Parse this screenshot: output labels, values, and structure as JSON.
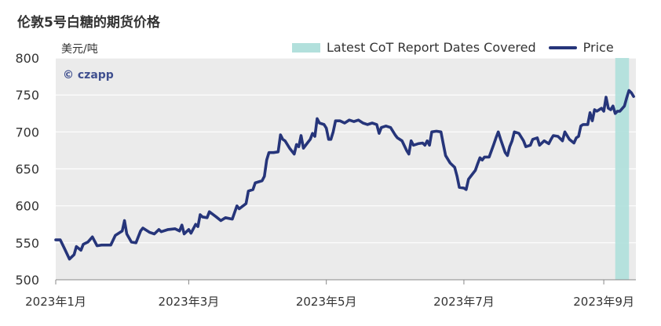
{
  "chart_data": {
    "type": "line",
    "title": "伦敦5号白糖的期货价格",
    "ylabel": "美元/吨",
    "ylim": [
      500,
      800
    ],
    "yticks": [
      500,
      550,
      600,
      650,
      700,
      750,
      800
    ],
    "xlim": [
      0,
      253
    ],
    "x_ticks": [
      {
        "x": 0,
        "label": "2023年1月"
      },
      {
        "x": 58,
        "label": "2023年3月"
      },
      {
        "x": 118,
        "label": "2023年5月"
      },
      {
        "x": 178,
        "label": "2023年7月"
      },
      {
        "x": 239,
        "label": "2023年9月"
      }
    ],
    "grid": "horizontal",
    "watermark": "© czapp",
    "legend": {
      "position": "top-right",
      "entries": [
        {
          "name": "Latest CoT Report Dates Covered",
          "type": "band",
          "color": "#b2e0dc"
        },
        {
          "name": "Price",
          "type": "line",
          "color": "#26357a"
        }
      ]
    },
    "highlight_band": {
      "x_start": 244,
      "x_end": 250,
      "label": "Latest CoT Report Dates Covered"
    },
    "series": [
      {
        "name": "Price",
        "color": "#26357a",
        "points": [
          [
            0,
            554
          ],
          [
            2,
            554
          ],
          [
            4,
            541
          ],
          [
            6,
            528
          ],
          [
            8,
            534
          ],
          [
            9,
            545
          ],
          [
            11,
            540
          ],
          [
            12,
            548
          ],
          [
            14,
            551
          ],
          [
            16,
            558
          ],
          [
            18,
            546
          ],
          [
            20,
            547
          ],
          [
            24,
            547
          ],
          [
            26,
            560
          ],
          [
            29,
            566
          ],
          [
            30,
            580
          ],
          [
            31,
            562
          ],
          [
            33,
            551
          ],
          [
            35,
            550
          ],
          [
            37,
            566
          ],
          [
            38,
            570
          ],
          [
            41,
            564
          ],
          [
            43,
            562
          ],
          [
            45,
            568
          ],
          [
            46,
            565
          ],
          [
            49,
            568
          ],
          [
            52,
            569
          ],
          [
            54,
            566
          ],
          [
            55,
            574
          ],
          [
            56,
            562
          ],
          [
            58,
            568
          ],
          [
            59,
            563
          ],
          [
            61,
            575
          ],
          [
            62,
            572
          ],
          [
            63,
            588
          ],
          [
            64,
            585
          ],
          [
            66,
            584
          ],
          [
            67,
            592
          ],
          [
            70,
            585
          ],
          [
            72,
            580
          ],
          [
            74,
            584
          ],
          [
            77,
            582
          ],
          [
            79,
            600
          ],
          [
            80,
            596
          ],
          [
            83,
            603
          ],
          [
            84,
            620
          ],
          [
            86,
            622
          ],
          [
            87,
            631
          ],
          [
            90,
            634
          ],
          [
            91,
            640
          ],
          [
            92,
            662
          ],
          [
            93,
            672
          ],
          [
            95,
            672
          ],
          [
            97,
            673
          ],
          [
            98,
            696
          ],
          [
            99,
            690
          ],
          [
            100,
            688
          ],
          [
            102,
            678
          ],
          [
            104,
            670
          ],
          [
            105,
            683
          ],
          [
            106,
            680
          ],
          [
            107,
            695
          ],
          [
            108,
            678
          ],
          [
            110,
            686
          ],
          [
            111,
            690
          ],
          [
            112,
            698
          ],
          [
            113,
            694
          ],
          [
            114,
            718
          ],
          [
            115,
            712
          ],
          [
            117,
            710
          ],
          [
            118,
            705
          ],
          [
            119,
            690
          ],
          [
            120,
            690
          ],
          [
            121,
            700
          ],
          [
            122,
            715
          ],
          [
            124,
            715
          ],
          [
            126,
            712
          ],
          [
            128,
            716
          ],
          [
            130,
            714
          ],
          [
            132,
            716
          ],
          [
            134,
            712
          ],
          [
            136,
            710
          ],
          [
            138,
            712
          ],
          [
            140,
            710
          ],
          [
            141,
            698
          ],
          [
            142,
            706
          ],
          [
            144,
            708
          ],
          [
            146,
            706
          ],
          [
            148,
            696
          ],
          [
            149,
            692
          ],
          [
            151,
            688
          ],
          [
            153,
            675
          ],
          [
            154,
            670
          ],
          [
            155,
            688
          ],
          [
            156,
            682
          ],
          [
            158,
            684
          ],
          [
            160,
            685
          ],
          [
            161,
            682
          ],
          [
            162,
            688
          ],
          [
            163,
            682
          ],
          [
            164,
            700
          ],
          [
            166,
            701
          ],
          [
            168,
            700
          ],
          [
            169,
            684
          ],
          [
            170,
            668
          ],
          [
            172,
            658
          ],
          [
            174,
            652
          ],
          [
            175,
            640
          ],
          [
            176,
            625
          ],
          [
            178,
            624
          ],
          [
            179,
            622
          ],
          [
            180,
            636
          ],
          [
            181,
            640
          ],
          [
            183,
            648
          ],
          [
            184,
            657
          ],
          [
            185,
            665
          ],
          [
            186,
            662
          ],
          [
            187,
            666
          ],
          [
            189,
            666
          ],
          [
            191,
            683
          ],
          [
            192,
            692
          ],
          [
            193,
            700
          ],
          [
            194,
            690
          ],
          [
            196,
            672
          ],
          [
            197,
            668
          ],
          [
            198,
            680
          ],
          [
            199,
            688
          ],
          [
            200,
            700
          ],
          [
            202,
            698
          ],
          [
            204,
            688
          ],
          [
            205,
            680
          ],
          [
            207,
            682
          ],
          [
            208,
            690
          ],
          [
            210,
            692
          ],
          [
            211,
            682
          ],
          [
            213,
            688
          ],
          [
            215,
            684
          ],
          [
            216,
            690
          ],
          [
            217,
            695
          ],
          [
            219,
            694
          ],
          [
            221,
            688
          ],
          [
            222,
            700
          ],
          [
            224,
            690
          ],
          [
            226,
            685
          ],
          [
            227,
            692
          ],
          [
            228,
            694
          ],
          [
            229,
            708
          ],
          [
            230,
            710
          ],
          [
            232,
            710
          ],
          [
            233,
            726
          ],
          [
            234,
            715
          ],
          [
            235,
            730
          ],
          [
            236,
            728
          ],
          [
            238,
            732
          ],
          [
            239,
            728
          ],
          [
            240,
            747
          ],
          [
            241,
            732
          ],
          [
            242,
            730
          ],
          [
            243,
            735
          ],
          [
            244,
            725
          ],
          [
            245,
            728
          ],
          [
            246,
            728
          ],
          [
            248,
            735
          ],
          [
            249,
            746
          ],
          [
            250,
            756
          ],
          [
            251,
            753
          ],
          [
            252,
            748
          ]
        ]
      }
    ]
  }
}
